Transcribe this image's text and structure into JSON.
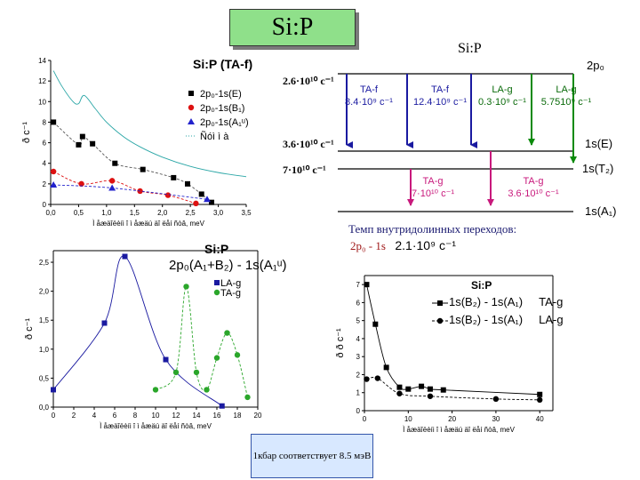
{
  "title": "Si:P",
  "diagram": {
    "title": "Si:P",
    "levels": [
      {
        "left_label": "2.6·10¹⁰ c⁻¹",
        "right_label": "2p₀"
      },
      {
        "left_label": "3.6·10¹⁰ c⁻¹",
        "right_label": "1s(E)"
      },
      {
        "left_label": "7·10¹⁰ c⁻¹",
        "right_label": "1s(T₂)"
      },
      {
        "left_label": "",
        "right_label": "1s(A₁)"
      }
    ],
    "transitions": [
      {
        "name": "TA-f",
        "rate": "8.4·10⁹ c⁻¹",
        "color": "#1a1aa0"
      },
      {
        "name": "TA-f",
        "rate": "12.4·10⁹ c⁻¹",
        "color": "#1a1aa0"
      },
      {
        "name": "LA-g",
        "rate": "0.3·10⁹ c⁻¹",
        "color": "#0a8a0a"
      },
      {
        "name": "LA-g",
        "rate": "5.7510⁹ c⁻¹",
        "color": "#0a8a0a"
      },
      {
        "name": "TA-g",
        "rate": "7·10¹⁰ c⁻¹",
        "color": "#c8197c"
      },
      {
        "name": "TA-g",
        "rate": "3.6·10¹⁰ c⁻¹",
        "color": "#c8197c"
      }
    ],
    "intervalley_label": "Темп внутридолинных переходов:",
    "intervalley_transition": "2p₀ - 1s",
    "intervalley_rate": "2.1·10⁹ c⁻¹"
  },
  "note": "1кбар соответствует 8.5 мэВ",
  "chart_data": [
    {
      "type": "scatter",
      "title": "Si:P (TA-f)",
      "xlabel": "Ì åæäîëèíi î ì åæäú äî ëåí ñòâ, meV",
      "ylabel": "ð c⁻¹",
      "xlim": [
        0,
        3.5
      ],
      "ylim": [
        0,
        14
      ],
      "xticks": [
        "0,0",
        "0,5",
        "1,0",
        "1,5",
        "2,0",
        "2,5",
        "3,0",
        "3,5"
      ],
      "yticks": [
        "0",
        "2",
        "4",
        "6",
        "8",
        "10",
        "12",
        "14"
      ],
      "series": [
        {
          "name": "2p₀-1s(E)",
          "color": "#000000",
          "marker": "square",
          "x": [
            0.05,
            0.5,
            0.57,
            0.75,
            1.15,
            1.65,
            2.2,
            2.45,
            2.7,
            2.88
          ],
          "y": [
            8.0,
            5.8,
            6.6,
            5.9,
            4.0,
            3.4,
            2.6,
            2.0,
            1.0,
            0.2
          ]
        },
        {
          "name": "2p₀-1s(B₁)",
          "color": "#dd1111",
          "marker": "circle",
          "x": [
            0.05,
            0.55,
            1.1,
            1.6,
            2.1,
            2.6
          ],
          "y": [
            3.2,
            2.0,
            2.3,
            1.3,
            0.9,
            0.1
          ]
        },
        {
          "name": "2p₀-1s(A₁ᵘ)",
          "color": "#2222cc",
          "marker": "triangle",
          "x": [
            0.05,
            1.1,
            2.8
          ],
          "y": [
            1.9,
            1.6,
            0.5
          ]
        },
        {
          "name": "Ñóì ì à",
          "color": "#2aa6a6",
          "marker": "line",
          "x": [
            0.05,
            0.2,
            0.4,
            0.5,
            0.6,
            0.8,
            1.0,
            1.3,
            1.6,
            2.0,
            2.5,
            3.0,
            3.5
          ],
          "y": [
            13.0,
            11.5,
            10.0,
            9.8,
            10.6,
            9.3,
            8.0,
            6.6,
            5.6,
            4.6,
            3.7,
            3.1,
            2.7
          ]
        }
      ]
    },
    {
      "type": "scatter",
      "title": "Si:P",
      "subtitle": "2p₀(A₁+B₂) - 1s(A₁ᵘ)",
      "xlabel": "Ì åæäîëèíi î ì åæäú äî ëåí ñòâ, meV",
      "ylabel": "ð c⁻¹",
      "xlim": [
        0,
        20
      ],
      "ylim": [
        0,
        2.7
      ],
      "xticks": [
        "0",
        "2",
        "4",
        "6",
        "8",
        "10",
        "12",
        "14",
        "16",
        "18",
        "20"
      ],
      "yticks": [
        "0,0",
        "0,5",
        "1,0",
        "1,5",
        "2,0",
        "2,5"
      ],
      "series": [
        {
          "name": "LA-g",
          "color": "#1a1aa0",
          "marker": "square",
          "x": [
            0,
            5,
            7,
            11,
            16.5
          ],
          "y": [
            0.3,
            1.45,
            2.6,
            0.82,
            0.02
          ]
        },
        {
          "name": "TA-g",
          "color": "#2aa62a",
          "marker": "circle",
          "x": [
            10,
            12,
            13,
            14,
            15,
            16,
            17,
            18,
            19
          ],
          "y": [
            0.3,
            0.6,
            2.08,
            0.6,
            0.3,
            0.85,
            1.28,
            0.9,
            0.17
          ]
        }
      ]
    },
    {
      "type": "scatter",
      "title": "Si:P",
      "xlabel": "Ì åæäîëèíi î ì åæäú äî ëåí ñòâ, meV",
      "ylabel": "ð ð c⁻¹",
      "xlim": [
        0,
        43
      ],
      "ylim": [
        0,
        7.5
      ],
      "xticks": [
        "0",
        "10",
        "20",
        "30",
        "40"
      ],
      "yticks": [
        "0",
        "1",
        "2",
        "3",
        "4",
        "5",
        "6",
        "7"
      ],
      "legend": [
        {
          "name": "1s(B₂) - 1s(A₁)",
          "tag": "TA-g"
        },
        {
          "name": "1s(B₂) - 1s(A₁)",
          "tag": "LA-g"
        }
      ],
      "series": [
        {
          "name": "1s(B₂) - 1s(A₁) TA-g",
          "color": "#000000",
          "marker": "square",
          "x": [
            0.5,
            2.5,
            5,
            8,
            10,
            13,
            15,
            18,
            40
          ],
          "y": [
            7.0,
            4.8,
            2.4,
            1.3,
            1.2,
            1.35,
            1.2,
            1.15,
            0.9
          ]
        },
        {
          "name": "1s(B₂) - 1s(A₁) LA-g",
          "color": "#000000",
          "marker": "circle",
          "x": [
            0.5,
            3,
            8,
            15,
            30,
            40
          ],
          "y": [
            1.75,
            1.8,
            0.95,
            0.8,
            0.65,
            0.6
          ]
        }
      ]
    }
  ]
}
